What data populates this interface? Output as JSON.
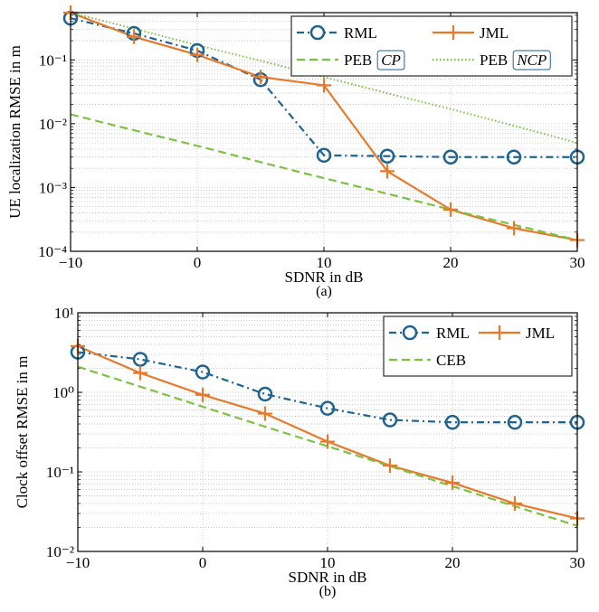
{
  "chart_data": [
    {
      "type": "line",
      "xlabel": "SDNR in dB",
      "ylabel": "UE localization RMSE in m",
      "caption": "(a)",
      "x": [
        -10,
        -5,
        0,
        5,
        10,
        15,
        20,
        25,
        30
      ],
      "xlim": [
        -10,
        30
      ],
      "xticks": [
        {
          "value": -10,
          "label": "−10"
        },
        0,
        10,
        20,
        30
      ],
      "ylim": [
        0.0001,
        0.55
      ],
      "log_y": true,
      "grid": true,
      "minor_grid": true,
      "yticks": [
        {
          "value": 0.0001,
          "label": "10⁻⁴"
        },
        {
          "value": 0.001,
          "label": "10⁻³"
        },
        {
          "value": 0.01,
          "label": "10⁻²"
        },
        {
          "value": 0.1,
          "label": "10⁻¹"
        }
      ],
      "legend": "upper right",
      "series": [
        {
          "name": "RML",
          "color": "#1f6391",
          "style": "dashdot",
          "marker": "circle",
          "values": [
            0.45,
            0.26,
            0.14,
            0.049,
            0.0032,
            0.0031,
            0.003,
            0.003,
            0.003
          ]
        },
        {
          "name": "JML",
          "color": "#e8792a",
          "style": "solid",
          "marker": "plus",
          "values": [
            0.55,
            0.23,
            0.12,
            0.054,
            0.04,
            0.0018,
            0.00045,
            0.00023,
            0.00015
          ]
        },
        {
          "name": "PEB",
          "badge": "CP",
          "color": "#7cc242",
          "style": "dashed",
          "marker": "none",
          "values": [
            0.014,
            0.0079,
            0.0045,
            0.0025,
            0.0014,
            0.0008,
            0.00045,
            0.00026,
            0.00015
          ]
        },
        {
          "name": "PEB",
          "badge": "NCP",
          "color": "#7cc242",
          "style": "dotted",
          "marker": "none",
          "values": [
            0.55,
            0.31,
            0.17,
            0.097,
            0.054,
            0.03,
            0.017,
            0.0093,
            0.005
          ]
        }
      ]
    },
    {
      "type": "line",
      "xlabel": "SDNR in dB",
      "ylabel": "Clock offset RMSE in m",
      "caption": "(b)",
      "x": [
        -10,
        -5,
        0,
        5,
        10,
        15,
        20,
        25,
        30
      ],
      "xlim": [
        -10,
        30
      ],
      "xticks": [
        {
          "value": -10,
          "label": "−10"
        },
        0,
        10,
        20,
        30
      ],
      "ylim": [
        0.01,
        10
      ],
      "log_y": true,
      "grid": true,
      "minor_grid": true,
      "yticks": [
        {
          "value": 0.01,
          "label": "10⁻²"
        },
        {
          "value": 0.1,
          "label": "10⁻¹"
        },
        {
          "value": 1,
          "label": "10⁰"
        },
        {
          "value": 10,
          "label": "10¹"
        }
      ],
      "legend": "upper right",
      "series": [
        {
          "name": "RML",
          "color": "#1f6391",
          "style": "dashdot",
          "marker": "circle",
          "values": [
            3.2,
            2.6,
            1.8,
            0.95,
            0.63,
            0.45,
            0.42,
            0.42,
            0.42
          ]
        },
        {
          "name": "JML",
          "color": "#e8792a",
          "style": "solid",
          "marker": "plus",
          "values": [
            3.8,
            1.75,
            0.93,
            0.54,
            0.24,
            0.12,
            0.073,
            0.04,
            0.026
          ]
        },
        {
          "name": "CEB",
          "color": "#7cc242",
          "style": "dashed",
          "marker": "none",
          "values": [
            2.1,
            1.18,
            0.66,
            0.37,
            0.21,
            0.118,
            0.066,
            0.037,
            0.021
          ]
        }
      ]
    }
  ]
}
